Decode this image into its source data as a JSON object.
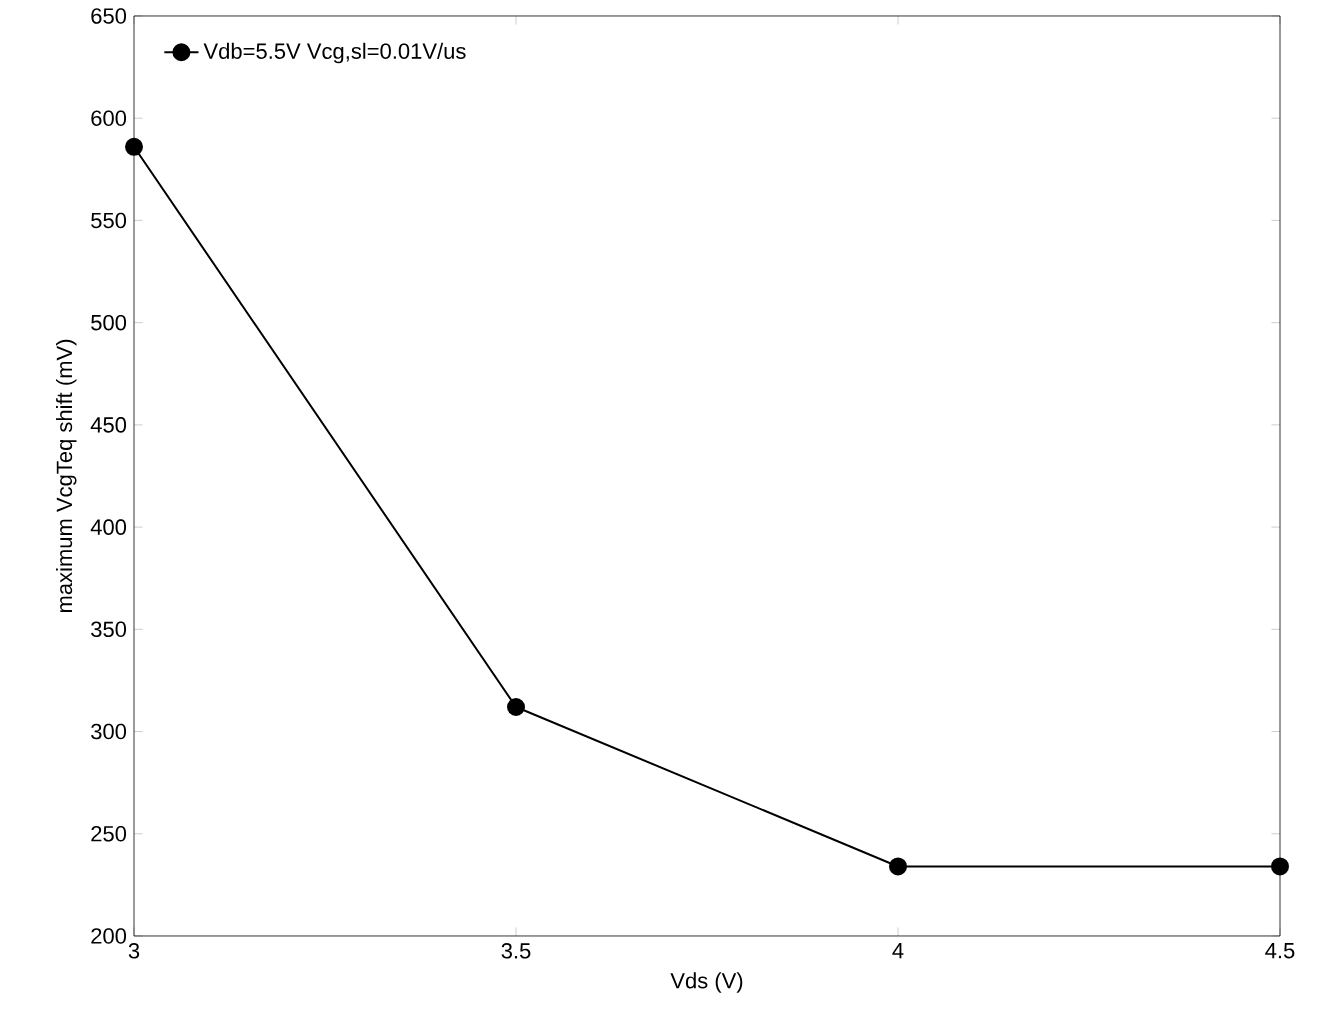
{
  "chart_data": {
    "type": "line",
    "xlabel": "Vds (V)",
    "ylabel": "maximum VcgTeq shift (mV)",
    "x": [
      3,
      3.5,
      4,
      4.5
    ],
    "series": [
      {
        "name": "Vdb=5.5V Vcg,sl=0.01V/us",
        "color": "#000000",
        "values": [
          586,
          312,
          234,
          234
        ]
      }
    ],
    "xlim": [
      3,
      4.5
    ],
    "xticks": [
      3,
      3.5,
      4,
      4.5
    ],
    "ylim": [
      200,
      650
    ],
    "yticks": [
      200,
      250,
      300,
      350,
      400,
      450,
      500,
      550,
      600,
      650
    ],
    "grid": false,
    "legend": "top left",
    "marker": "circle",
    "line_style": "solid"
  }
}
